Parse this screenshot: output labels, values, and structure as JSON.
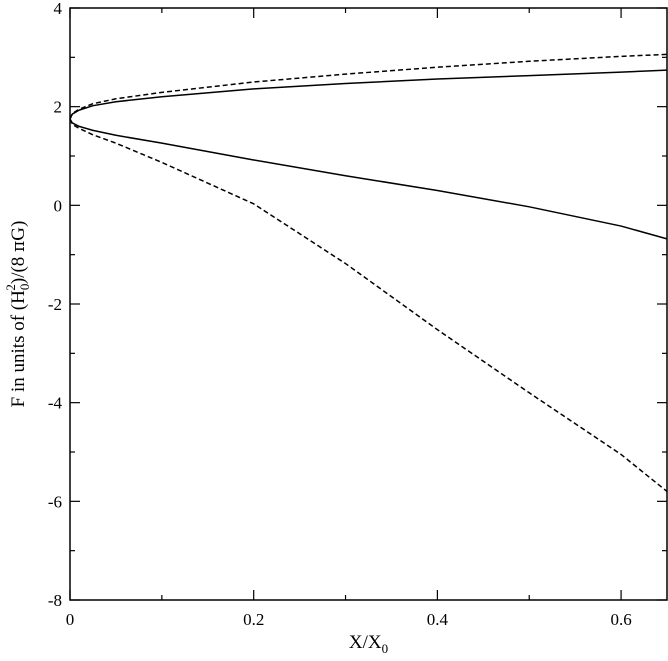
{
  "chart_data": {
    "type": "line",
    "title": "",
    "xlabel": {
      "main": "X/X",
      "sub": "0"
    },
    "ylabel": {
      "prefix": "F in units of (H",
      "sub": "0",
      "sup": "2",
      "mid": ")/(8 ",
      "pi": "π",
      "suffix": "G)"
    },
    "xlim": [
      0,
      0.65
    ],
    "ylim": [
      -8,
      4
    ],
    "xticks": [
      0,
      0.2,
      0.4,
      0.6
    ],
    "xtick_labels": [
      "0",
      "0.2",
      "0.4",
      "0.6"
    ],
    "yticks": [
      -8,
      -6,
      -4,
      -2,
      0,
      2,
      4
    ],
    "ytick_labels": [
      "-8",
      "-6",
      "-4",
      "-2",
      "0",
      "2",
      "4"
    ],
    "grid": false,
    "legend": "none",
    "colors": {
      "line": "#000000",
      "axes": "#000000",
      "background": "#ffffff"
    },
    "series": [
      {
        "style": "solid",
        "x": [
          0,
          0.0025,
          0.01,
          0.025,
          0.05,
          0.1,
          0.2,
          0.3,
          0.4,
          0.5,
          0.6,
          0.65
        ],
        "y": [
          1.75,
          1.85,
          1.93,
          2.02,
          2.1,
          2.2,
          2.36,
          2.47,
          2.56,
          2.63,
          2.7,
          2.74
        ]
      },
      {
        "style": "solid",
        "x": [
          0,
          0.0025,
          0.01,
          0.025,
          0.05,
          0.1,
          0.2,
          0.3,
          0.4,
          0.5,
          0.6,
          0.65
        ],
        "y": [
          1.75,
          1.67,
          1.6,
          1.52,
          1.42,
          1.26,
          0.92,
          0.6,
          0.3,
          -0.03,
          -0.42,
          -0.68
        ]
      },
      {
        "style": "dashed",
        "x": [
          0,
          0.0025,
          0.01,
          0.025,
          0.05,
          0.1,
          0.2,
          0.3,
          0.4,
          0.5,
          0.6,
          0.65
        ],
        "y": [
          1.75,
          1.86,
          1.95,
          2.06,
          2.16,
          2.29,
          2.5,
          2.66,
          2.8,
          2.92,
          3.02,
          3.06
        ]
      },
      {
        "style": "dashed",
        "x": [
          0,
          0.0025,
          0.01,
          0.025,
          0.05,
          0.1,
          0.2,
          0.3,
          0.4,
          0.5,
          0.6,
          0.65
        ],
        "y": [
          1.75,
          1.64,
          1.56,
          1.43,
          1.26,
          0.87,
          0.03,
          -1.18,
          -2.52,
          -3.8,
          -5.05,
          -5.8
        ]
      }
    ]
  }
}
